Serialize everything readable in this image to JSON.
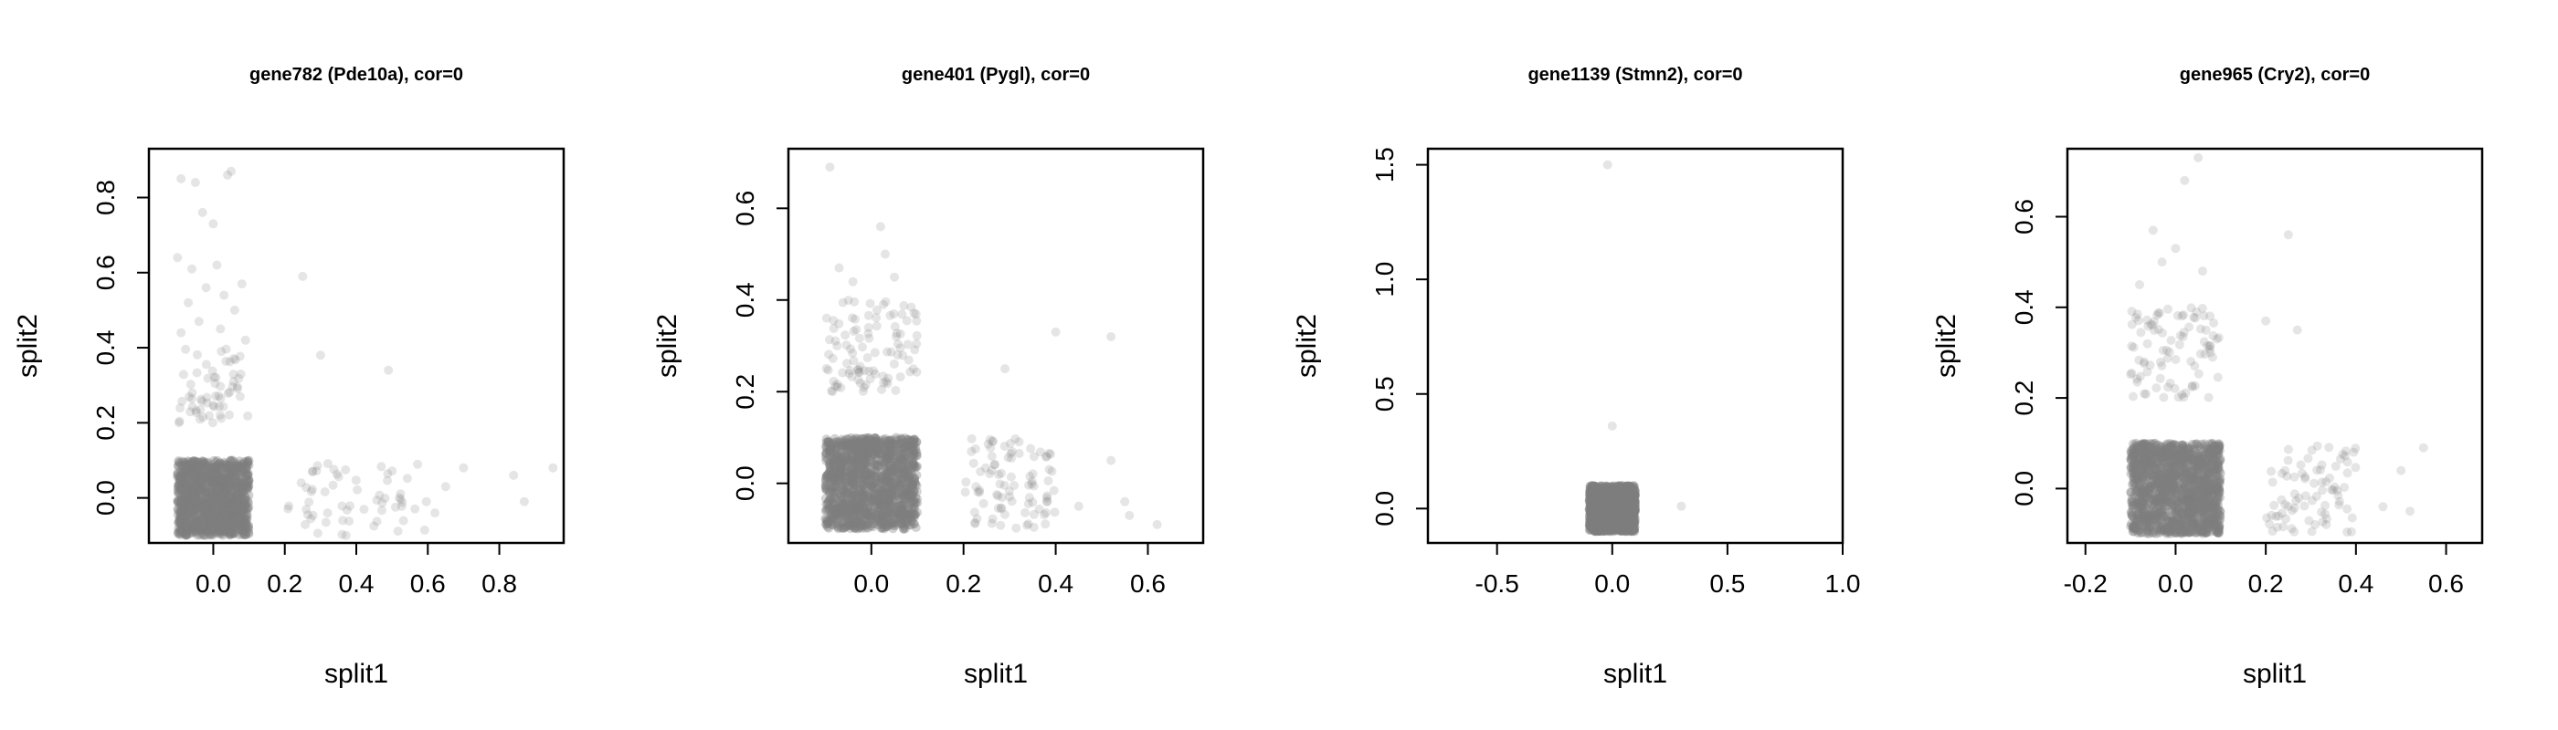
{
  "chart_data": [
    {
      "type": "scatter",
      "title": "gene782 (Pde10a), cor=0",
      "xlabel": "split1",
      "ylabel": "split2",
      "xlim": [
        -0.18,
        0.98
      ],
      "ylim": [
        -0.12,
        0.93
      ],
      "xticks": [
        0.0,
        0.2,
        0.4,
        0.6,
        0.8
      ],
      "yticks": [
        0.0,
        0.2,
        0.4,
        0.6,
        0.8
      ],
      "point_color": "#7f7f7f",
      "clusters": [
        {
          "x_range": [
            -0.1,
            0.1
          ],
          "y_range": [
            -0.1,
            0.1
          ],
          "n": 1200,
          "alpha": 0.35
        },
        {
          "x_range": [
            -0.1,
            0.1
          ],
          "y_range": [
            0.2,
            0.4
          ],
          "n": 60,
          "alpha": 0.2
        },
        {
          "x_range": [
            0.2,
            0.6
          ],
          "y_range": [
            -0.1,
            0.1
          ],
          "n": 60,
          "alpha": 0.2
        }
      ],
      "points": [
        {
          "x": -0.09,
          "y": 0.85
        },
        {
          "x": -0.05,
          "y": 0.84
        },
        {
          "x": 0.05,
          "y": 0.87
        },
        {
          "x": 0.04,
          "y": 0.86
        },
        {
          "x": -0.03,
          "y": 0.76
        },
        {
          "x": 0.0,
          "y": 0.73
        },
        {
          "x": -0.1,
          "y": 0.64
        },
        {
          "x": 0.01,
          "y": 0.62
        },
        {
          "x": -0.06,
          "y": 0.61
        },
        {
          "x": -0.02,
          "y": 0.56
        },
        {
          "x": 0.03,
          "y": 0.54
        },
        {
          "x": 0.08,
          "y": 0.57
        },
        {
          "x": -0.07,
          "y": 0.52
        },
        {
          "x": 0.06,
          "y": 0.5
        },
        {
          "x": -0.04,
          "y": 0.47
        },
        {
          "x": 0.02,
          "y": 0.45
        },
        {
          "x": -0.09,
          "y": 0.44
        },
        {
          "x": 0.09,
          "y": 0.42
        },
        {
          "x": 0.25,
          "y": 0.59
        },
        {
          "x": 0.3,
          "y": 0.38
        },
        {
          "x": 0.49,
          "y": 0.34
        },
        {
          "x": 0.7,
          "y": 0.08
        },
        {
          "x": 0.84,
          "y": 0.06
        },
        {
          "x": 0.95,
          "y": 0.08
        },
        {
          "x": 0.87,
          "y": -0.01
        },
        {
          "x": 0.62,
          "y": -0.04
        },
        {
          "x": 0.65,
          "y": 0.03
        }
      ]
    },
    {
      "type": "scatter",
      "title": "gene401 (Pygl), cor=0",
      "xlabel": "split1",
      "ylabel": "split2",
      "xlim": [
        -0.18,
        0.72
      ],
      "ylim": [
        -0.13,
        0.73
      ],
      "xticks": [
        0.0,
        0.2,
        0.4,
        0.6
      ],
      "yticks": [
        0.0,
        0.2,
        0.4,
        0.6
      ],
      "point_color": "#7f7f7f",
      "clusters": [
        {
          "x_range": [
            -0.1,
            0.1
          ],
          "y_range": [
            -0.1,
            0.1
          ],
          "n": 1400,
          "alpha": 0.35
        },
        {
          "x_range": [
            -0.1,
            0.1
          ],
          "y_range": [
            0.2,
            0.4
          ],
          "n": 100,
          "alpha": 0.2
        },
        {
          "x_range": [
            0.2,
            0.4
          ],
          "y_range": [
            -0.1,
            0.1
          ],
          "n": 90,
          "alpha": 0.2
        }
      ],
      "points": [
        {
          "x": -0.09,
          "y": 0.69
        },
        {
          "x": 0.02,
          "y": 0.56
        },
        {
          "x": 0.03,
          "y": 0.5
        },
        {
          "x": -0.07,
          "y": 0.47
        },
        {
          "x": -0.04,
          "y": 0.44
        },
        {
          "x": 0.05,
          "y": 0.45
        },
        {
          "x": 0.29,
          "y": 0.25
        },
        {
          "x": 0.4,
          "y": 0.33
        },
        {
          "x": 0.52,
          "y": 0.32
        },
        {
          "x": 0.52,
          "y": 0.05
        },
        {
          "x": 0.55,
          "y": -0.04
        },
        {
          "x": 0.56,
          "y": -0.07
        },
        {
          "x": 0.62,
          "y": -0.09
        },
        {
          "x": 0.45,
          "y": -0.05
        }
      ]
    },
    {
      "type": "scatter",
      "title": "gene1139 (Stmn2), cor=0",
      "xlabel": "split1",
      "ylabel": "split2",
      "xlim": [
        -0.8,
        1.0
      ],
      "ylim": [
        -0.15,
        1.57
      ],
      "xticks": [
        -0.5,
        0.0,
        0.5,
        1.0
      ],
      "yticks": [
        0.0,
        0.5,
        1.0,
        1.5
      ],
      "point_color": "#7f7f7f",
      "clusters": [
        {
          "x_range": [
            -0.1,
            0.1
          ],
          "y_range": [
            -0.1,
            0.1
          ],
          "n": 1500,
          "alpha": 0.45
        }
      ],
      "points": [
        {
          "x": -0.02,
          "y": 1.5
        },
        {
          "x": 0.0,
          "y": 0.36
        },
        {
          "x": 0.3,
          "y": 0.01
        }
      ]
    },
    {
      "type": "scatter",
      "title": "gene965 (Cry2), cor=0",
      "xlabel": "split1",
      "ylabel": "split2",
      "xlim": [
        -0.24,
        0.68
      ],
      "ylim": [
        -0.12,
        0.75
      ],
      "xticks": [
        -0.2,
        0.0,
        0.2,
        0.4,
        0.6
      ],
      "yticks": [
        0.0,
        0.2,
        0.4,
        0.6
      ],
      "point_color": "#7f7f7f",
      "clusters": [
        {
          "x_range": [
            -0.1,
            0.1
          ],
          "y_range": [
            -0.1,
            0.1
          ],
          "n": 1400,
          "alpha": 0.35
        },
        {
          "x_range": [
            -0.1,
            0.1
          ],
          "y_range": [
            0.2,
            0.4
          ],
          "n": 90,
          "alpha": 0.2
        },
        {
          "x_range": [
            0.2,
            0.4
          ],
          "y_range": [
            -0.1,
            0.1
          ],
          "n": 80,
          "alpha": 0.2
        }
      ],
      "points": [
        {
          "x": 0.05,
          "y": 0.73
        },
        {
          "x": 0.02,
          "y": 0.68
        },
        {
          "x": -0.05,
          "y": 0.57
        },
        {
          "x": 0.0,
          "y": 0.53
        },
        {
          "x": -0.03,
          "y": 0.5
        },
        {
          "x": 0.06,
          "y": 0.48
        },
        {
          "x": -0.08,
          "y": 0.45
        },
        {
          "x": 0.25,
          "y": 0.56
        },
        {
          "x": 0.27,
          "y": 0.35
        },
        {
          "x": 0.2,
          "y": 0.37
        },
        {
          "x": 0.55,
          "y": 0.09
        },
        {
          "x": 0.5,
          "y": 0.04
        },
        {
          "x": 0.52,
          "y": -0.05
        },
        {
          "x": 0.46,
          "y": -0.04
        }
      ]
    }
  ]
}
